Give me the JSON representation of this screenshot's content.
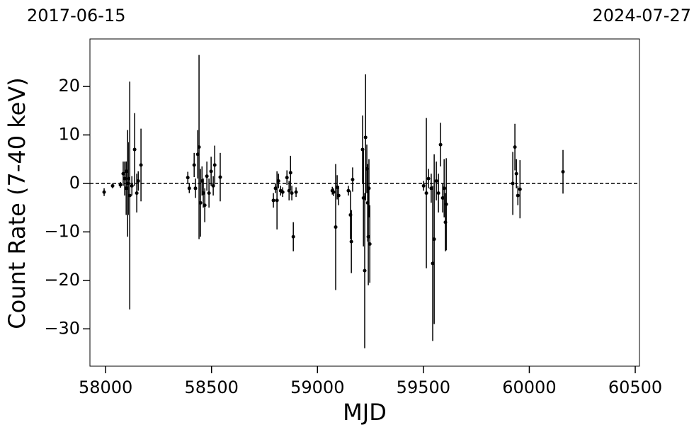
{
  "chart_data": {
    "type": "errorbar",
    "xlabel": "MJD",
    "ylabel": "Count Rate (7-40 keV)",
    "top_left_label": "2017-06-15",
    "top_right_label": "2024-07-27",
    "color": "#000000",
    "hline": 0,
    "xlim": [
      57926,
      60520
    ],
    "ylim": [
      -37.7,
      29.8
    ],
    "xticks": [
      58000,
      58500,
      59000,
      59500,
      60000,
      60500
    ],
    "yticks": [
      {
        "value": -30,
        "label": "−30"
      },
      {
        "value": -20,
        "label": "−20"
      },
      {
        "value": -10,
        "label": "−10"
      },
      0,
      10,
      20
    ],
    "x": [
      57993,
      58033,
      58070,
      58083,
      58090,
      58097,
      58104,
      58114,
      58124,
      58137,
      58147,
      58154,
      58167,
      58097,
      58107,
      58388,
      58395,
      58418,
      58424,
      58435,
      58441,
      58448,
      58455,
      58461,
      58468,
      58478,
      58488,
      58498,
      58508,
      58515,
      58541,
      58792,
      58802,
      58809,
      58816,
      58826,
      58836,
      58856,
      58866,
      58873,
      58879,
      58886,
      58899,
      59070,
      59076,
      59086,
      59093,
      59100,
      59146,
      59156,
      59160,
      59166,
      59213,
      59217,
      59223,
      59227,
      59233,
      59237,
      59240,
      59243,
      59247,
      59501,
      59514,
      59524,
      59537,
      59544,
      59551,
      59561,
      59571,
      59581,
      59591,
      59598,
      59604,
      59608,
      59922,
      59932,
      59939,
      59946,
      59956,
      60159
    ],
    "values": [
      -1.8,
      -0.5,
      -0.3,
      2,
      1,
      2.5,
      0,
      -2.5,
      -0.5,
      7,
      -2,
      0.5,
      3.8,
      -1,
      1,
      1.2,
      -1,
      3.8,
      -1,
      6,
      7.5,
      -4,
      0.5,
      -2,
      -4.5,
      1.5,
      -2,
      2.5,
      -0.5,
      3.8,
      1.3,
      -3.5,
      -1,
      -3.5,
      0.5,
      -1.5,
      -1.8,
      1.2,
      -1.5,
      2.2,
      -2,
      -11,
      -1.8,
      -1.5,
      -1.8,
      -9,
      -0.8,
      -2.5,
      -1.5,
      -6.5,
      -12,
      0.8,
      7,
      -3,
      -18,
      9.5,
      3,
      -4,
      -11,
      -1,
      -12.5,
      -0.5,
      -2,
      1,
      -1,
      -16.5,
      -11.5,
      0.5,
      -2,
      8,
      -3,
      -1,
      -8,
      -4.3,
      0,
      7.5,
      2,
      -2.5,
      -1.2,
      2.4
    ],
    "errors": [
      0.8,
      0.5,
      0.6,
      2.5,
      3.5,
      2,
      11,
      23.5,
      2,
      7.5,
      4,
      2,
      7.5,
      5.5,
      7.5,
      1.2,
      1,
      2.5,
      2,
      5,
      19,
      7,
      3,
      3,
      3.5,
      3,
      3,
      3,
      2,
      4,
      5,
      1.5,
      1,
      6,
      1.5,
      1,
      1,
      1.5,
      2,
      3.5,
      1.5,
      3,
      1,
      0.8,
      0.8,
      13,
      2.5,
      2,
      1,
      5,
      6.5,
      2.5,
      7,
      10,
      16,
      13,
      5,
      8,
      10,
      6,
      8,
      1,
      15.5,
      2,
      3,
      16,
      17.5,
      4,
      4,
      4.5,
      3,
      6,
      6,
      9.5,
      6.5,
      4.8,
      3,
      2,
      6,
      4.5
    ]
  }
}
